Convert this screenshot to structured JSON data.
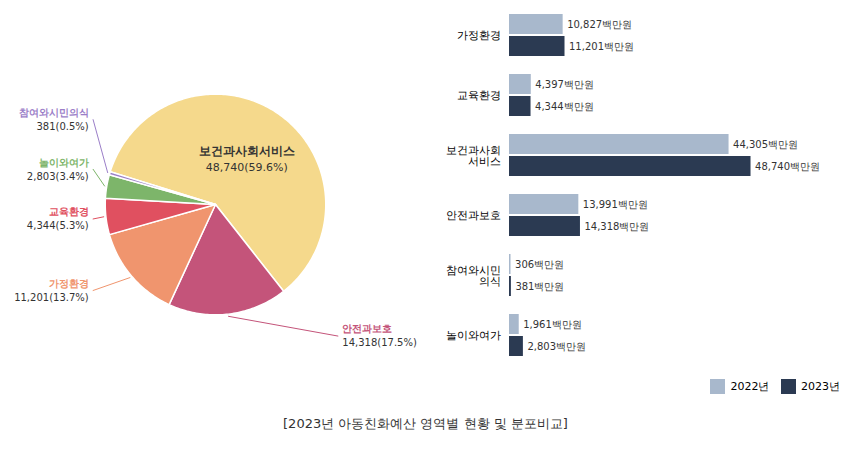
{
  "chart_data": [
    {
      "type": "pie",
      "title": "[2023년 아동친화예산 영역별 현황 및 분포비교]",
      "categories": [
        "보건과사회서비스",
        "안전과보호",
        "가정환경",
        "교육환경",
        "놀이와여가",
        "참여와시민의식"
      ],
      "values": [
        48740,
        14318,
        11201,
        4344,
        2803,
        381
      ],
      "value_labels": [
        "48,740(59.6%)",
        "14,318(17.5%)",
        "11,201(13.7%)",
        "4,344(5.3%)",
        "2,803(3.4%)",
        "381(0.5%)"
      ],
      "colors": [
        "#F5D98C",
        "#C4547A",
        "#F0956E",
        "#E05060",
        "#7DB56A",
        "#9B7EC8"
      ],
      "data_labels": true
    },
    {
      "type": "bar",
      "orientation": "horizontal",
      "categories": [
        "가정환경",
        "교육환경",
        "보건과사회\n서비스",
        "안전과보호",
        "참여와시민\n의식",
        "놀이와여가"
      ],
      "series": [
        {
          "name": "2022년",
          "color": "#A8B8CC",
          "values": [
            10827,
            4397,
            44305,
            13991,
            306,
            1961
          ],
          "value_labels": [
            "10,827백만원",
            "4,397백만원",
            "44,305백만원",
            "13,991백만원",
            "306백만원",
            "1,961백만원"
          ]
        },
        {
          "name": "2023년",
          "color": "#2B3A52",
          "values": [
            11201,
            4344,
            48740,
            14318,
            381,
            2803
          ],
          "value_labels": [
            "11,201백만원",
            "4,344백만원",
            "48,740백만원",
            "14,318백만원",
            "381백만원",
            "2,803백만원"
          ]
        }
      ],
      "xlim": [
        0,
        67000
      ],
      "tick_labels": "y",
      "data_labels": true,
      "legend": "lower right",
      "grid": false
    }
  ]
}
